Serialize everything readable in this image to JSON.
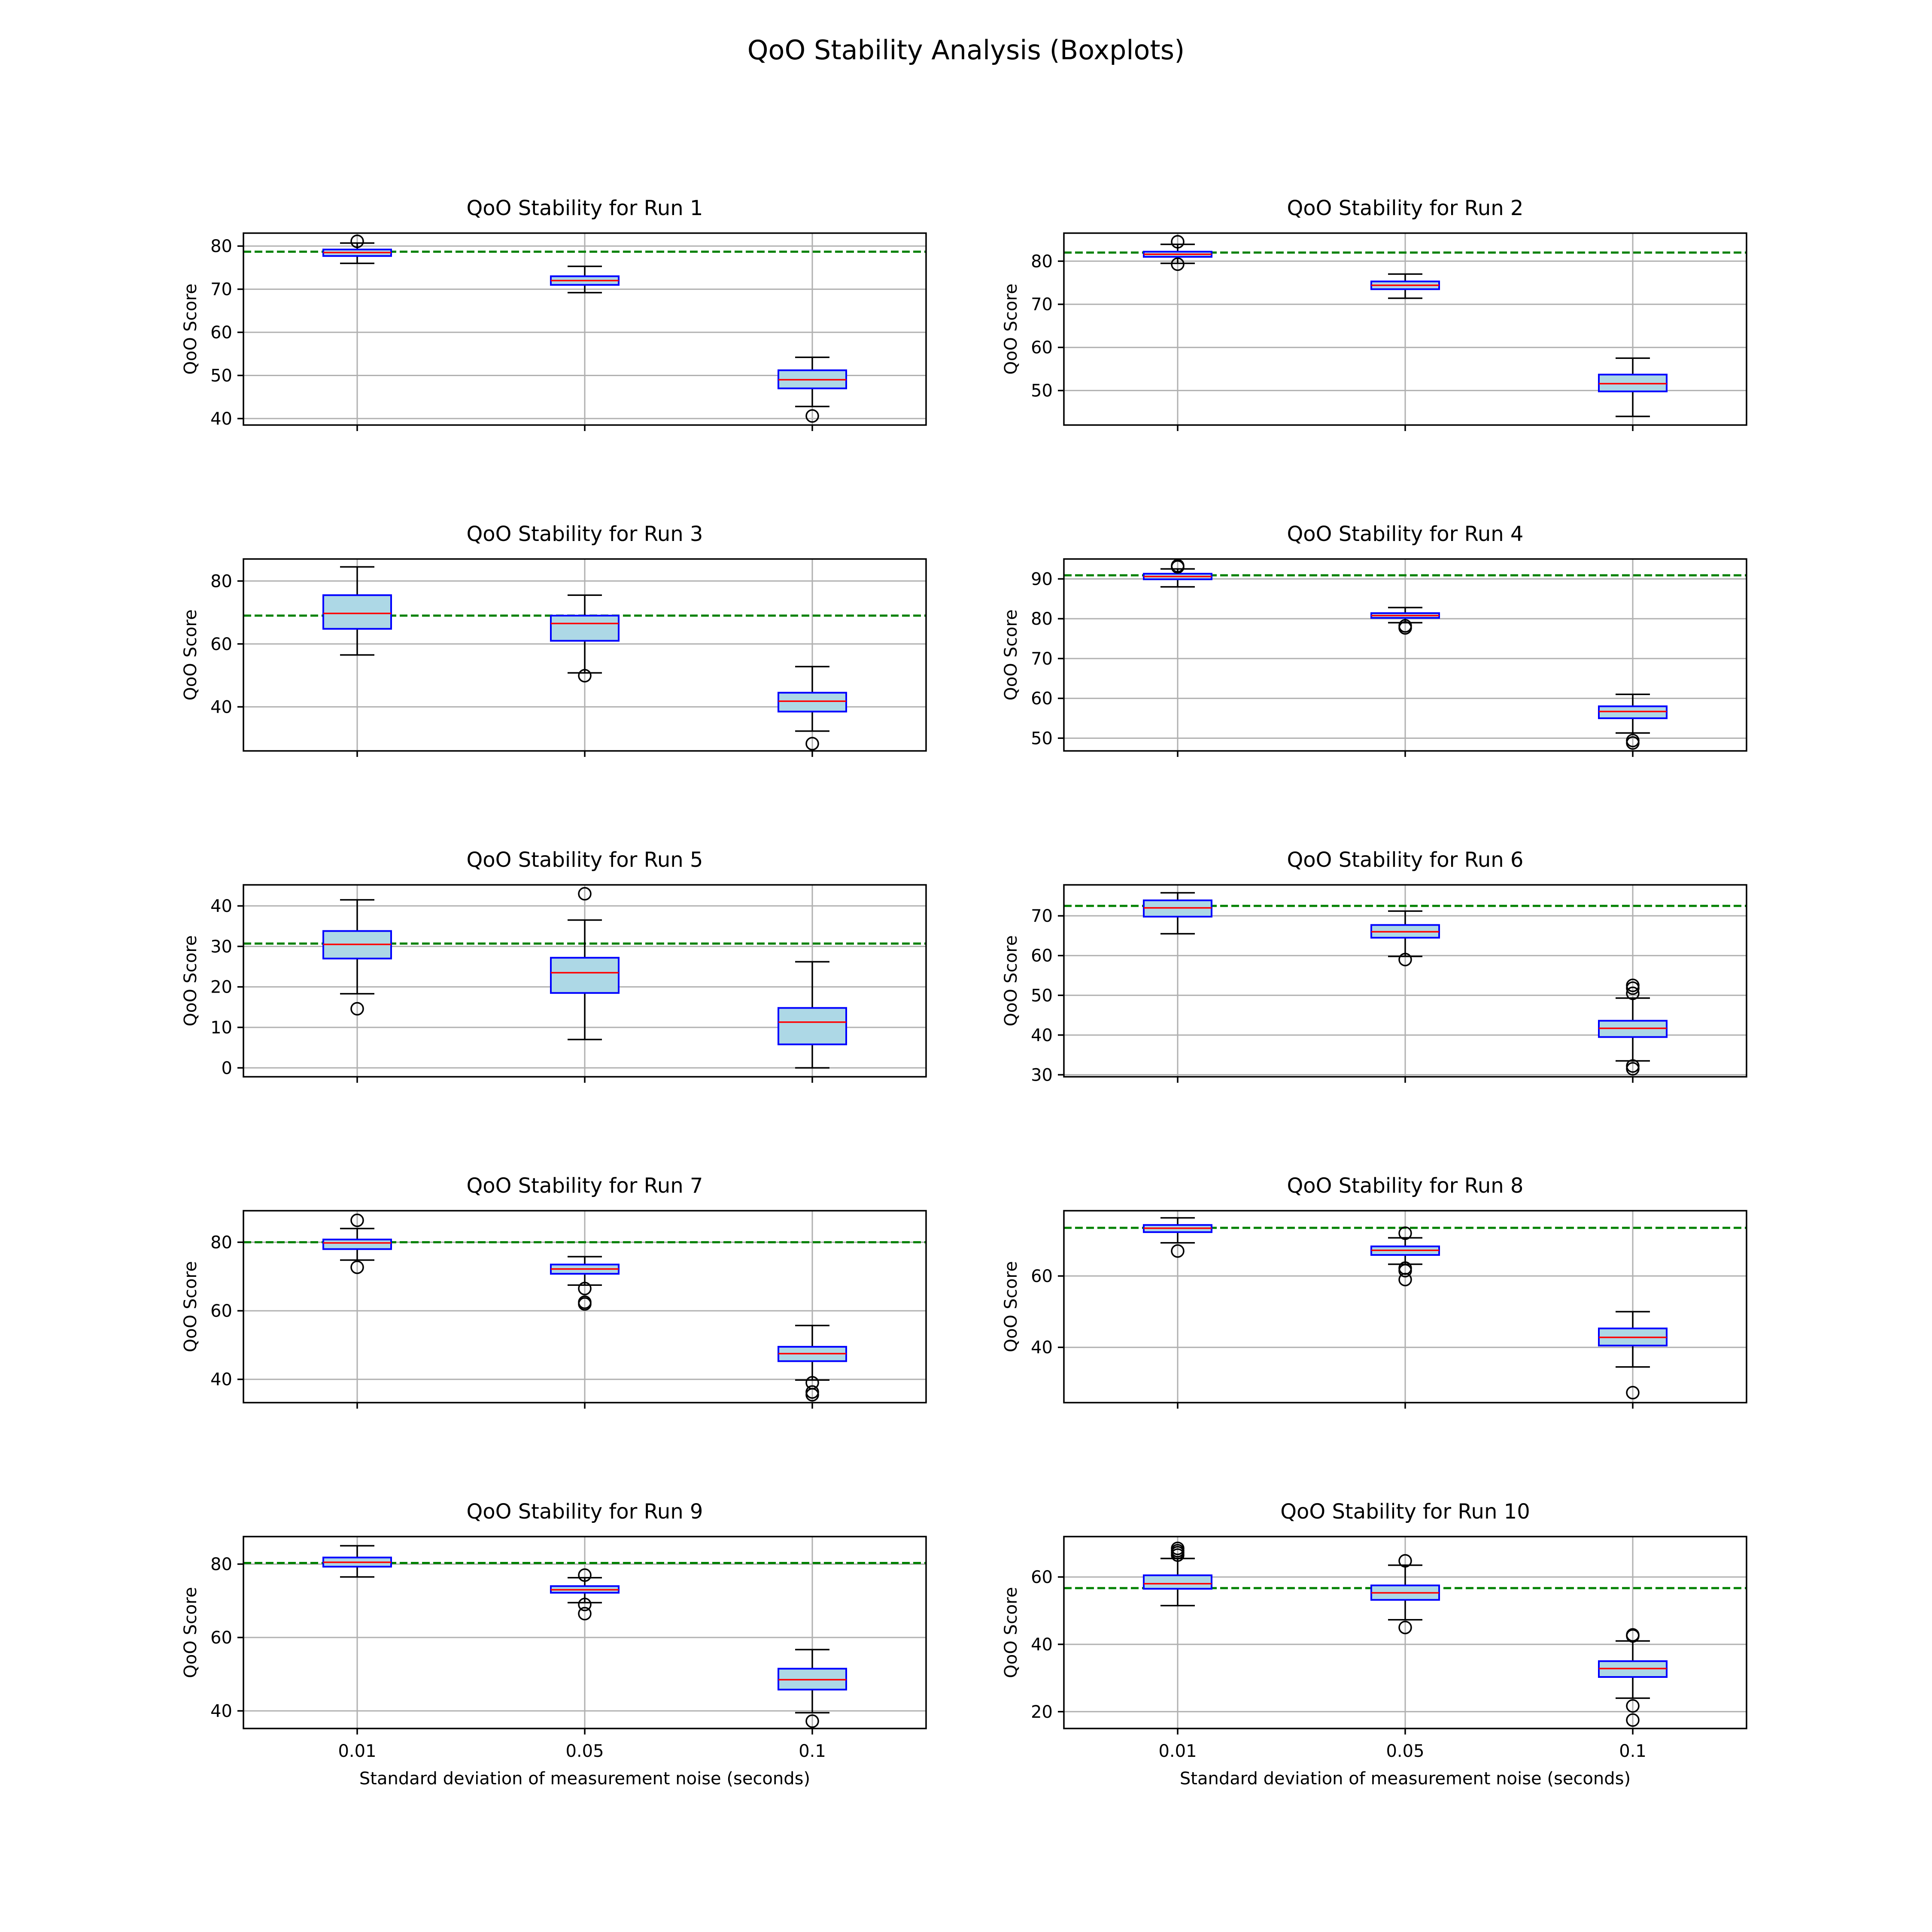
{
  "figure": {
    "title": "QoO Stability Analysis (Boxplots)"
  },
  "colors": {
    "box_fill": "#add8e6",
    "box_edge": "#0000ff",
    "median": "#ff0000",
    "whisker": "#000000",
    "reference_line": "#008000",
    "grid": "#b0b0b0"
  },
  "chart_data": [
    {
      "type": "boxplot",
      "title": "QoO Stability for Run 1",
      "categories": [
        "0.01",
        "0.05",
        "0.1"
      ],
      "xlabel": "",
      "ylabel": "QoO Score",
      "ylim": [
        38.5,
        83
      ],
      "yticks": [
        40,
        50,
        60,
        70,
        80
      ],
      "reference_line": 78.7,
      "grid": true,
      "boxes": [
        {
          "whislo": 76.0,
          "q1": 77.7,
          "med": 78.5,
          "q3": 79.2,
          "whishi": 80.7,
          "fliers": [
            81.1
          ]
        },
        {
          "whislo": 69.2,
          "q1": 71.0,
          "med": 72.0,
          "q3": 73.0,
          "whishi": 75.3,
          "fliers": []
        },
        {
          "whislo": 42.8,
          "q1": 47.0,
          "med": 49.0,
          "q3": 51.2,
          "whishi": 54.2,
          "fliers": [
            40.6
          ]
        }
      ]
    },
    {
      "type": "boxplot",
      "title": "QoO Stability for Run 2",
      "categories": [
        "0.01",
        "0.05",
        "0.1"
      ],
      "xlabel": "",
      "ylabel": "QoO Score",
      "ylim": [
        42,
        86.5
      ],
      "yticks": [
        50,
        60,
        70,
        80
      ],
      "reference_line": 82.0,
      "grid": true,
      "boxes": [
        {
          "whislo": 79.5,
          "q1": 81.0,
          "med": 81.6,
          "q3": 82.2,
          "whishi": 83.9,
          "fliers": [
            79.3,
            84.5
          ]
        },
        {
          "whislo": 71.4,
          "q1": 73.5,
          "med": 74.4,
          "q3": 75.3,
          "whishi": 77.0,
          "fliers": []
        },
        {
          "whislo": 44.0,
          "q1": 49.8,
          "med": 51.6,
          "q3": 53.7,
          "whishi": 57.5,
          "fliers": []
        }
      ]
    },
    {
      "type": "boxplot",
      "title": "QoO Stability for Run 3",
      "categories": [
        "0.01",
        "0.05",
        "0.1"
      ],
      "xlabel": "",
      "ylabel": "QoO Score",
      "ylim": [
        26,
        87
      ],
      "yticks": [
        40,
        60,
        80
      ],
      "reference_line": 69.0,
      "grid": true,
      "boxes": [
        {
          "whislo": 56.5,
          "q1": 64.8,
          "med": 69.7,
          "q3": 75.5,
          "whishi": 84.5,
          "fliers": []
        },
        {
          "whislo": 50.8,
          "q1": 61.0,
          "med": 66.5,
          "q3": 69.0,
          "whishi": 75.5,
          "fliers": [
            49.9
          ]
        },
        {
          "whislo": 32.3,
          "q1": 38.5,
          "med": 41.8,
          "q3": 44.5,
          "whishi": 52.8,
          "fliers": [
            28.3
          ]
        }
      ]
    },
    {
      "type": "boxplot",
      "title": "QoO Stability for Run 4",
      "categories": [
        "0.01",
        "0.05",
        "0.1"
      ],
      "xlabel": "",
      "ylabel": "QoO Score",
      "ylim": [
        46.8,
        95
      ],
      "yticks": [
        50,
        60,
        70,
        80,
        90
      ],
      "reference_line": 90.9,
      "grid": true,
      "boxes": [
        {
          "whislo": 88.0,
          "q1": 89.9,
          "med": 90.6,
          "q3": 91.3,
          "whishi": 92.5,
          "fliers": [
            93.0,
            93.3
          ]
        },
        {
          "whislo": 79.0,
          "q1": 80.2,
          "med": 80.8,
          "q3": 81.4,
          "whishi": 82.8,
          "fliers": [
            77.7,
            78.2
          ]
        },
        {
          "whislo": 51.3,
          "q1": 55.0,
          "med": 56.7,
          "q3": 58.0,
          "whishi": 61.0,
          "fliers": [
            48.8,
            49.4
          ]
        }
      ]
    },
    {
      "type": "boxplot",
      "title": "QoO Stability for Run 5",
      "categories": [
        "0.01",
        "0.05",
        "0.1"
      ],
      "xlabel": "",
      "ylabel": "QoO Score",
      "ylim": [
        -2.2,
        45.2
      ],
      "yticks": [
        0,
        10,
        20,
        30,
        40
      ],
      "reference_line": 30.7,
      "grid": true,
      "boxes": [
        {
          "whislo": 18.3,
          "q1": 27.0,
          "med": 30.5,
          "q3": 33.8,
          "whishi": 41.5,
          "fliers": [
            14.6
          ]
        },
        {
          "whislo": 7.0,
          "q1": 18.5,
          "med": 23.5,
          "q3": 27.2,
          "whishi": 36.5,
          "fliers": [
            43.0
          ]
        },
        {
          "whislo": 0.0,
          "q1": 5.8,
          "med": 11.3,
          "q3": 14.8,
          "whishi": 26.2,
          "fliers": []
        }
      ]
    },
    {
      "type": "boxplot",
      "title": "QoO Stability for Run 6",
      "categories": [
        "0.01",
        "0.05",
        "0.1"
      ],
      "xlabel": "",
      "ylabel": "QoO Score",
      "ylim": [
        29.5,
        77.8
      ],
      "yticks": [
        30,
        40,
        50,
        60,
        70
      ],
      "reference_line": 72.5,
      "grid": true,
      "boxes": [
        {
          "whislo": 65.5,
          "q1": 69.8,
          "med": 72.0,
          "q3": 73.9,
          "whishi": 75.8,
          "fliers": []
        },
        {
          "whislo": 59.8,
          "q1": 64.5,
          "med": 66.0,
          "q3": 67.7,
          "whishi": 71.2,
          "fliers": [
            59.0
          ]
        },
        {
          "whislo": 33.5,
          "q1": 39.5,
          "med": 41.7,
          "q3": 43.6,
          "whishi": 49.3,
          "fliers": [
            50.5,
            51.8,
            52.5,
            31.5,
            32.2
          ]
        }
      ]
    },
    {
      "type": "boxplot",
      "title": "QoO Stability for Run 7",
      "categories": [
        "0.01",
        "0.05",
        "0.1"
      ],
      "xlabel": "",
      "ylabel": "QoO Score",
      "ylim": [
        33.2,
        89.2
      ],
      "yticks": [
        40,
        60,
        80
      ],
      "reference_line": 80.0,
      "grid": true,
      "boxes": [
        {
          "whislo": 74.8,
          "q1": 78.0,
          "med": 79.8,
          "q3": 80.8,
          "whishi": 84.0,
          "fliers": [
            86.4,
            72.7
          ]
        },
        {
          "whislo": 67.5,
          "q1": 70.8,
          "med": 72.2,
          "q3": 73.5,
          "whishi": 75.8,
          "fliers": [
            66.5,
            62.5,
            62.0
          ]
        },
        {
          "whislo": 39.8,
          "q1": 45.3,
          "med": 47.5,
          "q3": 49.5,
          "whishi": 55.7,
          "fliers": [
            39.0,
            36.3,
            35.5
          ]
        }
      ]
    },
    {
      "type": "boxplot",
      "title": "QoO Stability for Run 8",
      "categories": [
        "0.01",
        "0.05",
        "0.1"
      ],
      "xlabel": "",
      "ylabel": "QoO Score",
      "ylim": [
        24.5,
        78.3
      ],
      "yticks": [
        40,
        60
      ],
      "reference_line": 73.5,
      "grid": true,
      "boxes": [
        {
          "whislo": 69.3,
          "q1": 72.3,
          "med": 73.4,
          "q3": 74.3,
          "whishi": 76.3,
          "fliers": [
            67.0
          ]
        },
        {
          "whislo": 63.3,
          "q1": 65.9,
          "med": 67.2,
          "q3": 68.3,
          "whishi": 70.7,
          "fliers": [
            72.0,
            62.2,
            61.5,
            59.0
          ]
        },
        {
          "whislo": 34.5,
          "q1": 40.5,
          "med": 42.8,
          "q3": 45.3,
          "whishi": 50.0,
          "fliers": [
            27.3
          ]
        }
      ]
    },
    {
      "type": "boxplot",
      "title": "QoO Stability for Run 9",
      "categories": [
        "0.01",
        "0.05",
        "0.1"
      ],
      "xlabel": "Standard deviation of measurement noise (seconds)",
      "ylabel": "QoO Score",
      "ylim": [
        35.2,
        87.5
      ],
      "yticks": [
        40,
        60,
        80
      ],
      "reference_line": 80.3,
      "grid": true,
      "boxes": [
        {
          "whislo": 76.5,
          "q1": 79.3,
          "med": 80.5,
          "q3": 81.8,
          "whishi": 85.0,
          "fliers": []
        },
        {
          "whislo": 69.5,
          "q1": 72.2,
          "med": 73.0,
          "q3": 74.0,
          "whishi": 76.3,
          "fliers": [
            77.0,
            69.0,
            66.5
          ]
        },
        {
          "whislo": 39.5,
          "q1": 45.8,
          "med": 48.5,
          "q3": 51.5,
          "whishi": 56.7,
          "fliers": [
            37.2
          ]
        }
      ]
    },
    {
      "type": "boxplot",
      "title": "QoO Stability for Run 10",
      "categories": [
        "0.01",
        "0.05",
        "0.1"
      ],
      "xlabel": "Standard deviation of measurement noise (seconds)",
      "ylabel": "QoO Score",
      "ylim": [
        15,
        72
      ],
      "yticks": [
        20,
        40,
        60
      ],
      "reference_line": 56.7,
      "grid": true,
      "boxes": [
        {
          "whislo": 51.5,
          "q1": 56.5,
          "med": 58.0,
          "q3": 60.5,
          "whishi": 65.5,
          "fliers": [
            66.5,
            67.2,
            67.8,
            68.5
          ]
        },
        {
          "whislo": 47.3,
          "q1": 53.2,
          "med": 55.3,
          "q3": 57.5,
          "whishi": 63.5,
          "fliers": [
            64.8,
            45.0
          ]
        },
        {
          "whislo": 24.0,
          "q1": 30.3,
          "med": 32.8,
          "q3": 35.0,
          "whishi": 41.0,
          "fliers": [
            42.5,
            42.8,
            21.7,
            17.5
          ]
        }
      ]
    }
  ]
}
